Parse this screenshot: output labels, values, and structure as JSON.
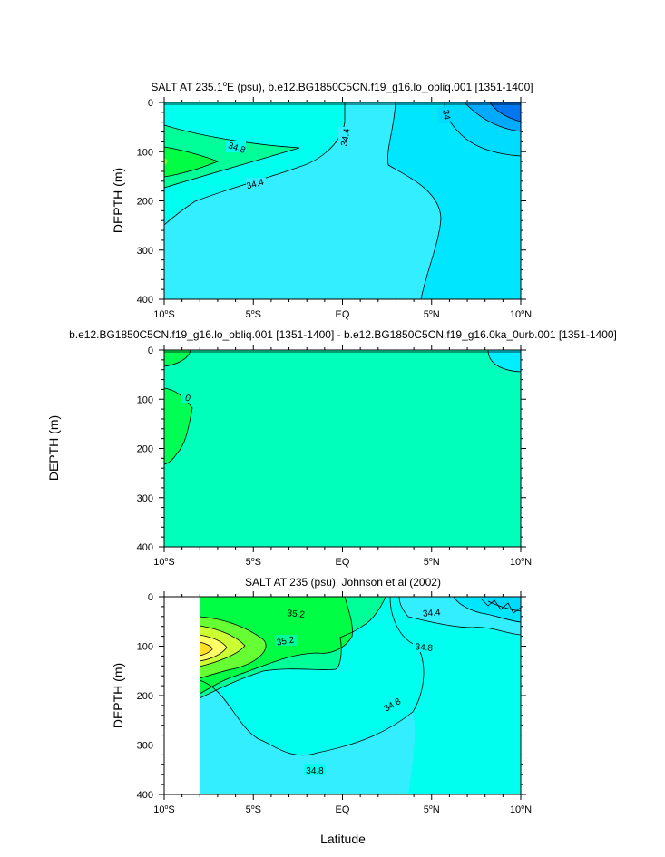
{
  "colors": {
    "c_33_6": "#00dcff",
    "c_34_0": "#00e6ff",
    "c_34_4": "#33eeff",
    "c_34_8": "#00ffee",
    "c_35_0": "#00ff99",
    "c_35_2": "#00ff44",
    "c_35_4": "#66ff33",
    "c_35_6": "#ccff33",
    "c_35_8": "#ffff66",
    "c_36_0": "#ffdd22",
    "c_deep1": "#00aaff",
    "c_deep2": "#0077ee",
    "d_zero": "#00ffbb",
    "d_pos": "#00ff55",
    "d_neg": "#00eeff"
  },
  "chart_data": [
    {
      "type": "contour",
      "title": "SALT AT 235.1°E (psu), b.e12.BG1850C5CN.f19_g16.lo_obliq.001 [1351-1400]",
      "title_parts": {
        "pre": "SALT AT 235.1",
        "sup": "o",
        "post": "E (psu), b.e12.BG1850C5CN.f19_g16.lo_obliq.001 [1351-1400]"
      },
      "xlabel": "",
      "ylabel": "DEPTH (m)",
      "xlim": [
        -10,
        10
      ],
      "ylim": [
        400,
        0
      ],
      "x_ticks": [
        "10°S",
        "5°S",
        "EQ",
        "5°N",
        "10°N"
      ],
      "y_ticks": [
        "0",
        "100",
        "200",
        "300",
        "400"
      ],
      "contour_labels": [
        "34.8",
        "34.4",
        "34.4",
        "34"
      ]
    },
    {
      "type": "contour",
      "title": "b.e12.BG1850C5CN.f19_g16.lo_obliq.001 [1351-1400] - b.e12.BG1850C5CN.f19_g16.0ka_0urb.001 [1351-1400]",
      "xlabel": "",
      "ylabel": "DEPTH (m)",
      "xlim": [
        -10,
        10
      ],
      "ylim": [
        400,
        0
      ],
      "x_ticks": [
        "10°S",
        "5°S",
        "EQ",
        "5°N",
        "10°N"
      ],
      "y_ticks": [
        "0",
        "100",
        "200",
        "300",
        "400"
      ],
      "contour_labels": [
        "0"
      ]
    },
    {
      "type": "contour",
      "title": "SALT AT 235 (psu), Johnson et al (2002)",
      "xlabel": "Latitude",
      "ylabel": "DEPTH (m)",
      "xlim": [
        -10,
        10
      ],
      "ylim": [
        400,
        0
      ],
      "data_x_start": -8,
      "x_ticks": [
        "10°S",
        "5°S",
        "EQ",
        "5°N",
        "10°N"
      ],
      "y_ticks": [
        "0",
        "100",
        "200",
        "300",
        "400"
      ],
      "contour_labels": [
        "35.2",
        "35.2",
        "34.8",
        "34.8",
        "34.8",
        "34.4"
      ]
    }
  ]
}
